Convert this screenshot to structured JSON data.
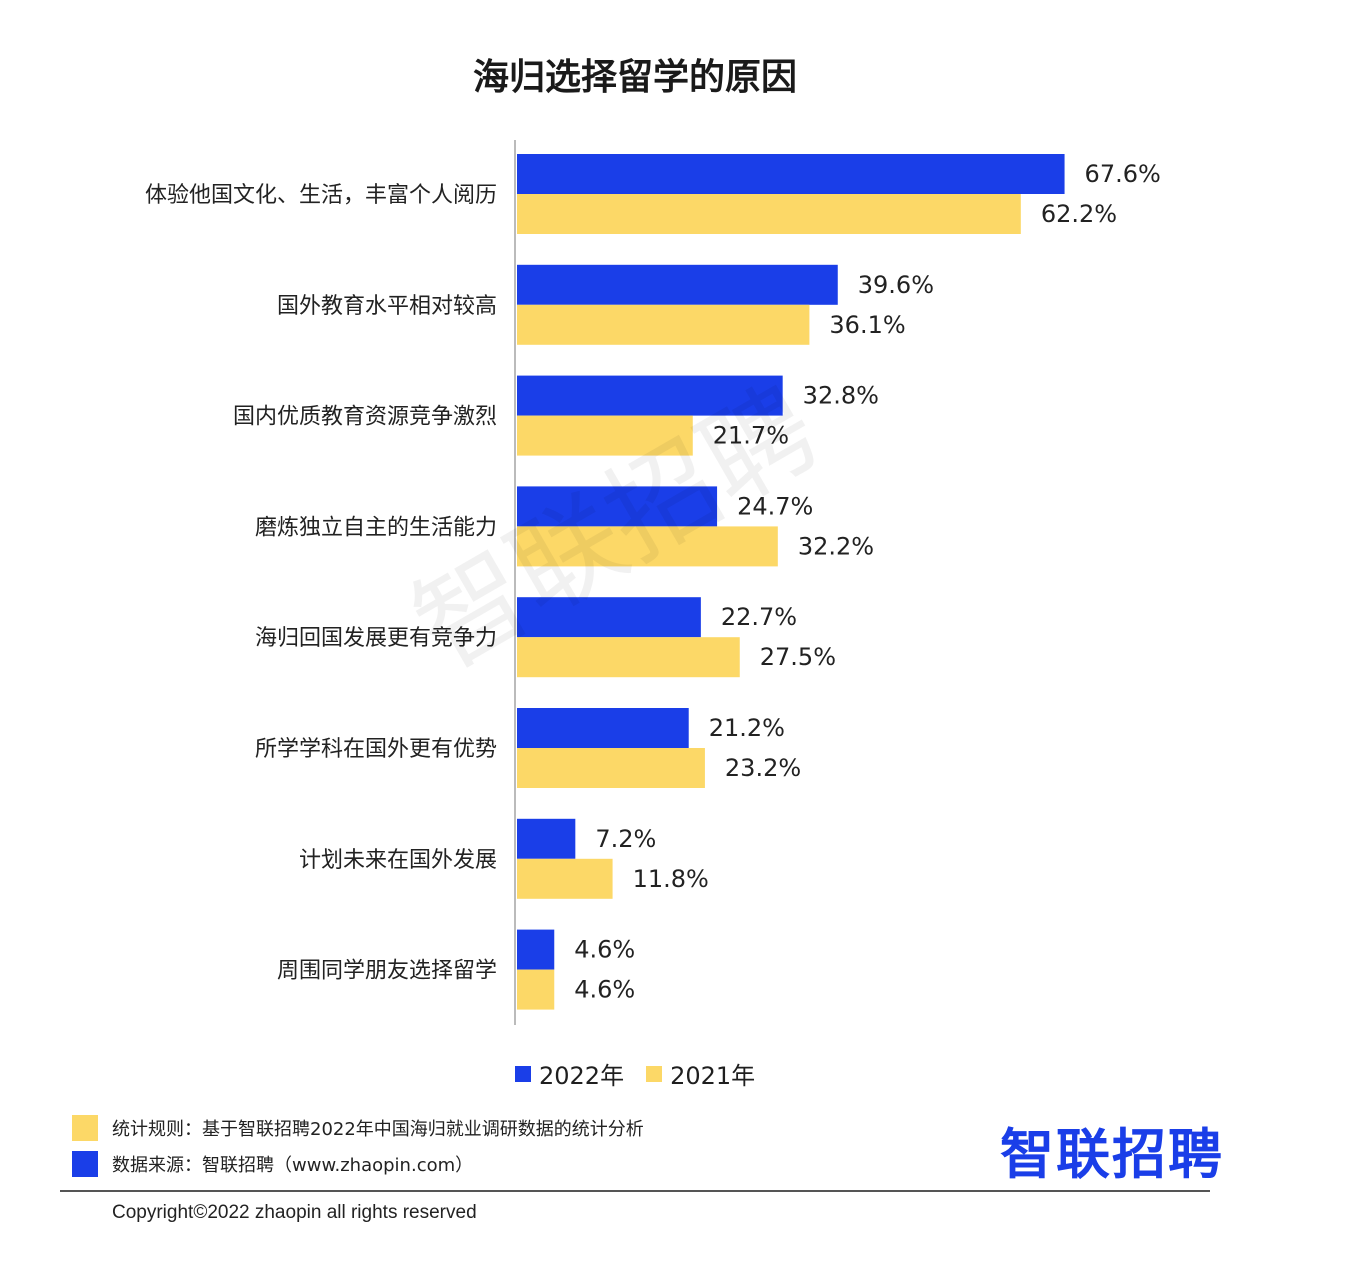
{
  "title": "海归选择留学的原因",
  "colors": {
    "s2022": "#1a3ee8",
    "s2021": "#fcd867"
  },
  "chart_data": {
    "type": "bar",
    "orientation": "horizontal",
    "categories": [
      "体验他国文化、生活，丰富个人阅历",
      "国外教育水平相对较高",
      "国内优质教育资源竞争激烈",
      "磨炼独立自主的生活能力",
      "海归回国发展更有竞争力",
      "所学学科在国外更有优势",
      "计划未来在国外发展",
      "周围同学朋友选择留学"
    ],
    "series": [
      {
        "name": "2022年",
        "values": [
          67.6,
          39.6,
          32.8,
          24.7,
          22.7,
          21.2,
          7.2,
          4.6
        ]
      },
      {
        "name": "2021年",
        "values": [
          62.2,
          36.1,
          21.7,
          32.2,
          27.5,
          23.2,
          11.8,
          4.6
        ]
      }
    ],
    "value_suffix": "%",
    "xlim": [
      0,
      100
    ],
    "grid": false,
    "legend_position": "bottom"
  },
  "legend": {
    "s2022": "2022年",
    "s2021": "2021年"
  },
  "notes": {
    "rule": "统计规则：基于智联招聘2022年中国海归就业调研数据的统计分析",
    "source": "数据来源：智联招聘（www.zhaopin.com）"
  },
  "logo": "智联招聘",
  "watermark": "智联招聘",
  "copyright": "Copyright©2022 zhaopin all rights reserved"
}
